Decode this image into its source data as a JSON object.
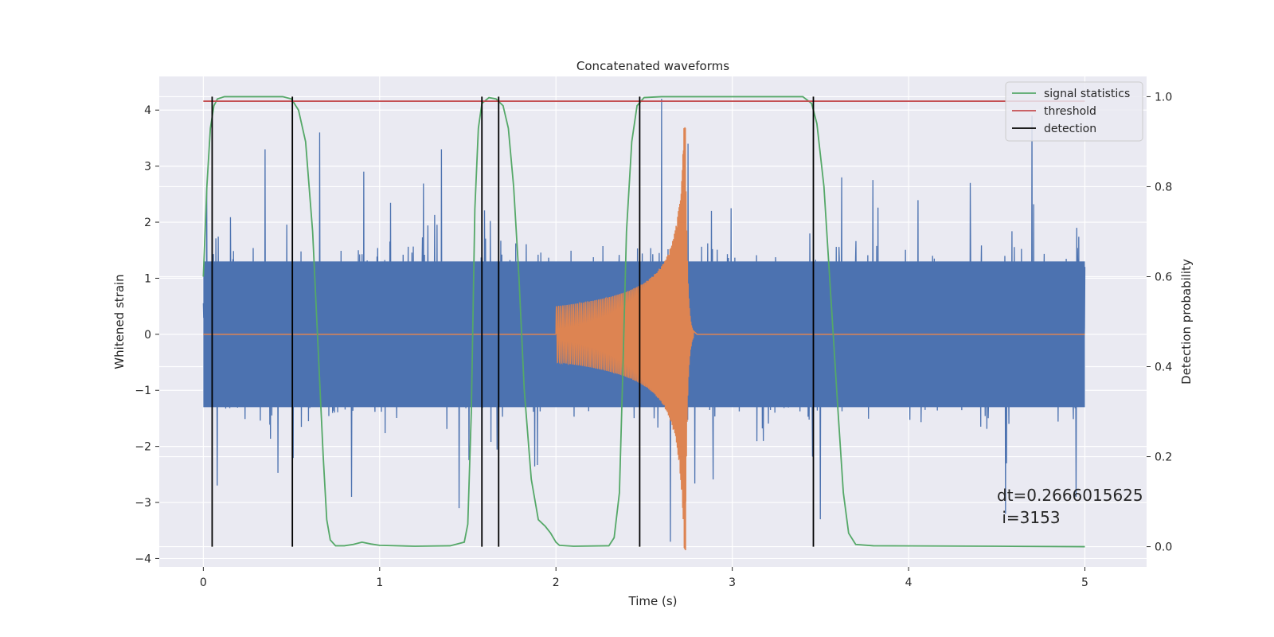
{
  "chart_data": {
    "type": "line",
    "title": "Concatenated waveforms",
    "xlabel": "Time (s)",
    "ylabel": "Whitened strain",
    "y2label": "Detection probability",
    "xlim": [
      -0.25,
      5.35
    ],
    "ylim": [
      -4.15,
      4.6
    ],
    "y2lim": [
      -0.045,
      1.045
    ],
    "xticks": [
      "0",
      "1",
      "2",
      "3",
      "4",
      "5"
    ],
    "yticks": [
      "−4",
      "−3",
      "−2",
      "−1",
      "0",
      "1",
      "2",
      "3",
      "4"
    ],
    "y2ticks": [
      "0.0",
      "0.2",
      "0.4",
      "0.6",
      "0.8",
      "1.0"
    ],
    "grid": true,
    "legend_position": "upper right",
    "background": "#eaeaf2",
    "series": [
      {
        "name": "",
        "axis": "left",
        "color": "#4c72b0",
        "kind": "noise",
        "x_range": [
          0,
          5
        ],
        "band": [
          -1.3,
          1.3
        ],
        "peaks": [
          {
            "x": 0.02,
            "y": 2.6
          },
          {
            "x": 0.35,
            "y": 3.3
          },
          {
            "x": 0.66,
            "y": 3.6
          },
          {
            "x": 0.91,
            "y": 2.9
          },
          {
            "x": 1.35,
            "y": 3.3
          },
          {
            "x": 2.6,
            "y": 4.2
          },
          {
            "x": 2.75,
            "y": 3.4
          },
          {
            "x": 4.7,
            "y": 3.9
          },
          {
            "x": 4.35,
            "y": 2.7
          },
          {
            "x": 0.84,
            "y": -2.9
          },
          {
            "x": 1.45,
            "y": -3.1
          },
          {
            "x": 2.65,
            "y": -3.7
          },
          {
            "x": 3.5,
            "y": -3.3
          },
          {
            "x": 4.55,
            "y": -3.2
          },
          {
            "x": 4.95,
            "y": -2.9
          }
        ]
      },
      {
        "name": "",
        "axis": "left",
        "color": "#dd8452",
        "kind": "chirp",
        "x_range": [
          0,
          5
        ],
        "chirp_start": 2.0,
        "chirp_peak": 2.735,
        "ringdown_end": 2.78,
        "peak_amplitude": 3.9,
        "start_amplitude": 0.5
      },
      {
        "name": "signal statistics",
        "axis": "right",
        "color": "#55a868",
        "points": [
          [
            0,
            0.6
          ],
          [
            0.02,
            0.8
          ],
          [
            0.04,
            0.93
          ],
          [
            0.06,
            0.98
          ],
          [
            0.08,
            0.995
          ],
          [
            0.12,
            1.0
          ],
          [
            0.45,
            1.0
          ],
          [
            0.5,
            0.995
          ],
          [
            0.54,
            0.97
          ],
          [
            0.58,
            0.9
          ],
          [
            0.62,
            0.7
          ],
          [
            0.65,
            0.45
          ],
          [
            0.68,
            0.2
          ],
          [
            0.7,
            0.06
          ],
          [
            0.72,
            0.015
          ],
          [
            0.75,
            0.002
          ],
          [
            0.8,
            0.002
          ],
          [
            0.85,
            0.005
          ],
          [
            0.9,
            0.01
          ],
          [
            0.95,
            0.006
          ],
          [
            1.0,
            0.003
          ],
          [
            1.2,
            0.001
          ],
          [
            1.4,
            0.002
          ],
          [
            1.48,
            0.01
          ],
          [
            1.5,
            0.05
          ],
          [
            1.52,
            0.3
          ],
          [
            1.54,
            0.75
          ],
          [
            1.56,
            0.93
          ],
          [
            1.58,
            0.985
          ],
          [
            1.62,
            0.998
          ],
          [
            1.66,
            0.995
          ],
          [
            1.7,
            0.98
          ],
          [
            1.73,
            0.93
          ],
          [
            1.76,
            0.8
          ],
          [
            1.79,
            0.6
          ],
          [
            1.82,
            0.35
          ],
          [
            1.86,
            0.15
          ],
          [
            1.9,
            0.06
          ],
          [
            1.94,
            0.045
          ],
          [
            1.97,
            0.03
          ],
          [
            2.0,
            0.01
          ],
          [
            2.02,
            0.003
          ],
          [
            2.1,
            0.001
          ],
          [
            2.3,
            0.002
          ],
          [
            2.33,
            0.02
          ],
          [
            2.36,
            0.12
          ],
          [
            2.38,
            0.4
          ],
          [
            2.4,
            0.7
          ],
          [
            2.43,
            0.9
          ],
          [
            2.46,
            0.98
          ],
          [
            2.5,
            0.998
          ],
          [
            2.6,
            1.0
          ],
          [
            3.4,
            1.0
          ],
          [
            3.45,
            0.985
          ],
          [
            3.48,
            0.94
          ],
          [
            3.52,
            0.8
          ],
          [
            3.56,
            0.55
          ],
          [
            3.6,
            0.3
          ],
          [
            3.63,
            0.12
          ],
          [
            3.66,
            0.03
          ],
          [
            3.7,
            0.005
          ],
          [
            3.8,
            0.002
          ],
          [
            4.5,
            0.001
          ],
          [
            5.0,
            0.0
          ]
        ]
      },
      {
        "name": "threshold",
        "axis": "right",
        "color": "#c44e52",
        "points": [
          [
            0,
            0.99
          ],
          [
            5,
            0.99
          ]
        ]
      },
      {
        "name": "detection",
        "axis": "right",
        "color": "#000000",
        "x": [
          0.05,
          0.505,
          1.58,
          1.675,
          2.475,
          3.46
        ],
        "y_range": [
          0,
          1.0
        ]
      }
    ],
    "annotation": {
      "line1": "dt=0.2666015625",
      "line2": " i=3153"
    }
  }
}
